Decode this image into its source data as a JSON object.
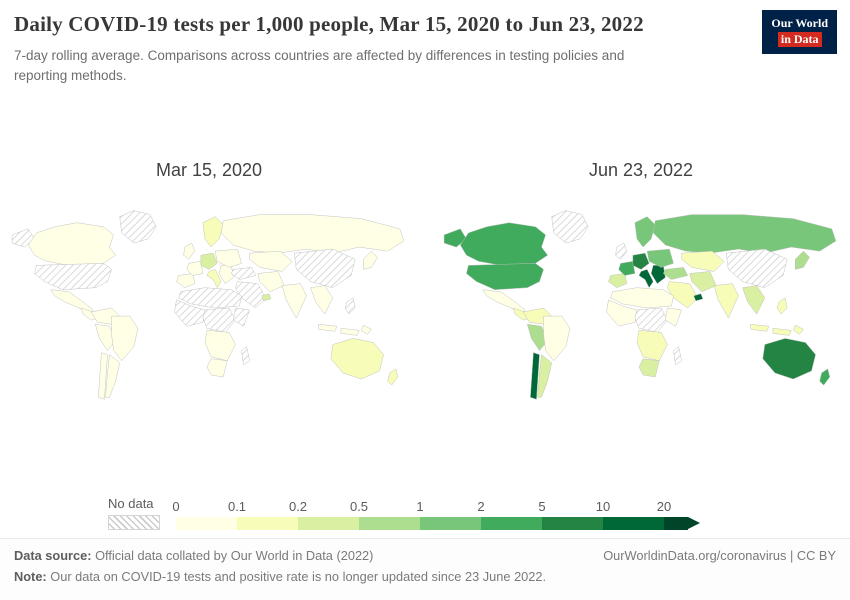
{
  "header": {
    "title": "Daily COVID-19 tests per 1,000 people, Mar 15, 2020 to Jun 23, 2022",
    "subtitle": "7-day rolling average. Comparisons across countries are affected by differences in testing policies and reporting methods.",
    "logo": {
      "line1": "Our World",
      "line2": "in Data"
    }
  },
  "footer": {
    "datasource_label": "Data source:",
    "datasource_text": " Official data collated by Our World in Data (2022)",
    "link": "OurWorldinData.org/coronavirus | CC BY",
    "note_label": "Note:",
    "note_text": " Our data on COVID-19 tests and positive rate is no longer updated since 23 June 2022."
  },
  "chart_data": {
    "type": "heatmap",
    "map_type": "choropleth-world-map",
    "title": "Daily COVID-19 tests per 1,000 people, Mar 15, 2020 to Jun 23, 2022",
    "unit": "daily tests per 1,000 people (7-day rolling average)",
    "dates": [
      "Mar 15, 2020",
      "Jun 23, 2022"
    ],
    "legend": {
      "no_data_label": "No data",
      "tick_labels": [
        "0",
        "0.1",
        "0.2",
        "0.5",
        "1",
        "2",
        "5",
        "10",
        "20"
      ],
      "bins": [
        "0-0.1",
        "0.1-0.2",
        "0.2-0.5",
        "0.5-1",
        "1-2",
        "2-5",
        "5-10",
        "10-20",
        ">20"
      ],
      "colors": [
        "#ffffe5",
        "#f7fcb9",
        "#d9f0a3",
        "#addd8e",
        "#78c679",
        "#41ab5d",
        "#238443",
        "#006837",
        "#004529"
      ],
      "no_data_pattern": "diagonal-hatch",
      "no_data_line_color": "#cccccc"
    },
    "maps": [
      {
        "date": "Mar 15, 2020",
        "fills": {
          "alaska": -1,
          "canada": 0,
          "greenland": -1,
          "usa": -1,
          "mexico": 0,
          "central-america": 0,
          "colombia": 0,
          "peru": 0,
          "brazil": 0,
          "chile": 0,
          "argentina": 0,
          "uk": 0,
          "scandinavia": 1,
          "iberia": 0,
          "france": 0,
          "central-europe": 2,
          "italy": 1,
          "balkans": 0,
          "eastern-europe": 0,
          "russia": 0,
          "kazakhstan": 0,
          "turkey": -1,
          "iran": 0,
          "saudi": -1,
          "uae": 2,
          "india": 0,
          "china": -1,
          "southeast-asia": 0,
          "indonesia": 0,
          "philippines": -1,
          "japan": 0,
          "north-africa": -1,
          "west-africa": -1,
          "central-africa": -1,
          "east-africa": -1,
          "southern-africa": 0,
          "south-africa": 0,
          "madagascar": -1,
          "australia": 1,
          "new-zealand": 1
        }
      },
      {
        "date": "Jun 23, 2022",
        "fills": {
          "alaska": 5,
          "canada": 5,
          "greenland": -1,
          "usa": 5,
          "mexico": 0,
          "central-america": 1,
          "colombia": 1,
          "peru": 3,
          "brazil": 0,
          "chile": 7,
          "argentina": 2,
          "uk": -1,
          "scandinavia": 4,
          "iberia": 2,
          "france": 5,
          "central-europe": 6,
          "italy": 7,
          "balkans": 7,
          "eastern-europe": 4,
          "russia": 4,
          "kazakhstan": 1,
          "turkey": 3,
          "iran": 2,
          "saudi": 1,
          "uae": 7,
          "india": 1,
          "china": -1,
          "southeast-asia": 2,
          "indonesia": 1,
          "philippines": 1,
          "japan": 3,
          "north-africa": 0,
          "west-africa": 0,
          "central-africa": -1,
          "east-africa": 0,
          "southern-africa": 1,
          "south-africa": 2,
          "madagascar": -1,
          "australia": 6,
          "new-zealand": 5
        }
      }
    ]
  }
}
